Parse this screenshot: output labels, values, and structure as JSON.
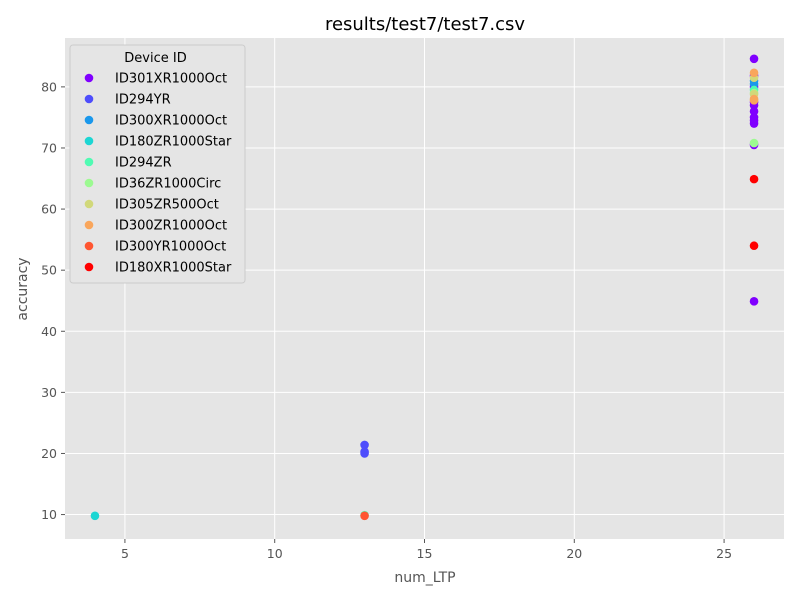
{
  "chart_data": {
    "type": "scatter",
    "title": "results/test7/test7.csv",
    "xlabel": "num_LTP",
    "ylabel": "accuracy",
    "xlim": [
      3,
      27
    ],
    "ylim": [
      6,
      88
    ],
    "xticks": [
      5,
      10,
      15,
      20,
      25
    ],
    "yticks": [
      10,
      20,
      30,
      40,
      50,
      60,
      70,
      80
    ],
    "grid": true,
    "style": "ggplot",
    "legend": {
      "title": "Device ID",
      "position": "upper-left"
    },
    "series": [
      {
        "name": "ID301XR1000Oct",
        "color": "#8000ff",
        "points": [
          [
            26,
            84.6
          ],
          [
            26,
            81.8
          ],
          [
            26,
            80.0
          ],
          [
            26,
            77.5
          ],
          [
            26,
            77.0
          ],
          [
            26,
            76.0
          ],
          [
            26,
            75.0
          ],
          [
            26,
            74.5
          ],
          [
            26,
            74.0
          ],
          [
            26,
            70.5
          ],
          [
            26,
            44.9
          ]
        ]
      },
      {
        "name": "ID294YR",
        "color": "#4e4dfc",
        "points": [
          [
            13,
            21.4
          ],
          [
            13,
            20.3
          ],
          [
            13,
            20.0
          ]
        ]
      },
      {
        "name": "ID300XR1000Oct",
        "color": "#1a98ec",
        "points": [
          [
            26,
            81.0
          ],
          [
            26,
            80.5
          ]
        ]
      },
      {
        "name": "ID180ZR1000Star",
        "color": "#1cd6d3",
        "points": [
          [
            4,
            9.8
          ]
        ]
      },
      {
        "name": "ID294ZR",
        "color": "#50fbb3",
        "points": [
          [
            13,
            9.9
          ],
          [
            26,
            79.5
          ]
        ]
      },
      {
        "name": "ID36ZR1000Circ",
        "color": "#9cfa91",
        "points": [
          [
            26,
            70.8
          ],
          [
            26,
            79.0
          ]
        ]
      },
      {
        "name": "ID305ZR500Oct",
        "color": "#d1d87a",
        "points": [
          [
            26,
            81.5
          ],
          [
            26,
            78.8
          ]
        ]
      },
      {
        "name": "ID300ZR1000Oct",
        "color": "#f9a65c",
        "points": [
          [
            26,
            82.3
          ],
          [
            26,
            78.0
          ],
          [
            26,
            77.8
          ]
        ]
      },
      {
        "name": "ID300YR1000Oct",
        "color": "#ff5631",
        "points": [
          [
            13,
            9.8
          ]
        ]
      },
      {
        "name": "ID180XR1000Star",
        "color": "#ff0000",
        "points": [
          [
            26,
            64.9
          ],
          [
            26,
            54.0
          ]
        ]
      }
    ]
  }
}
